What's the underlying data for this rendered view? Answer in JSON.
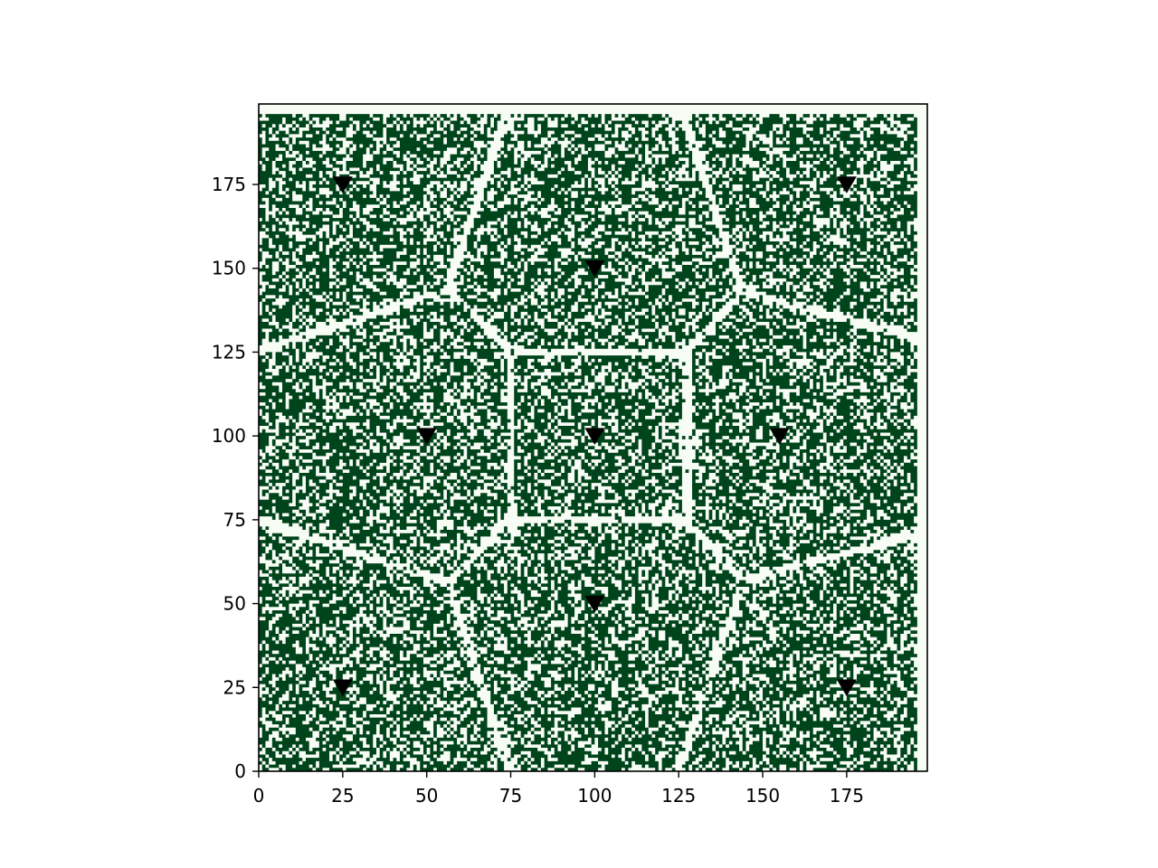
{
  "chart_data": {
    "type": "heatmap",
    "description_note": "",
    "title": "",
    "xlabel": "",
    "ylabel": "",
    "xlim": [
      0,
      199
    ],
    "ylim": [
      0,
      199
    ],
    "grid_size": 199,
    "x_ticks": [
      0,
      25,
      50,
      75,
      100,
      125,
      150,
      175
    ],
    "y_ticks": [
      0,
      25,
      50,
      75,
      100,
      125,
      150,
      175
    ],
    "colors": {
      "filled": "#00441b",
      "empty": "#f7fcf5"
    },
    "fill_fraction": 0.62,
    "grid": false,
    "legend": "none",
    "points": [
      {
        "x": 25,
        "y": 175
      },
      {
        "x": 175,
        "y": 175
      },
      {
        "x": 100,
        "y": 150
      },
      {
        "x": 50,
        "y": 100
      },
      {
        "x": 100,
        "y": 100
      },
      {
        "x": 155,
        "y": 100
      },
      {
        "x": 100,
        "y": 50
      },
      {
        "x": 25,
        "y": 25
      },
      {
        "x": 175,
        "y": 25
      }
    ],
    "marker": "v",
    "marker_color": "#000000"
  }
}
